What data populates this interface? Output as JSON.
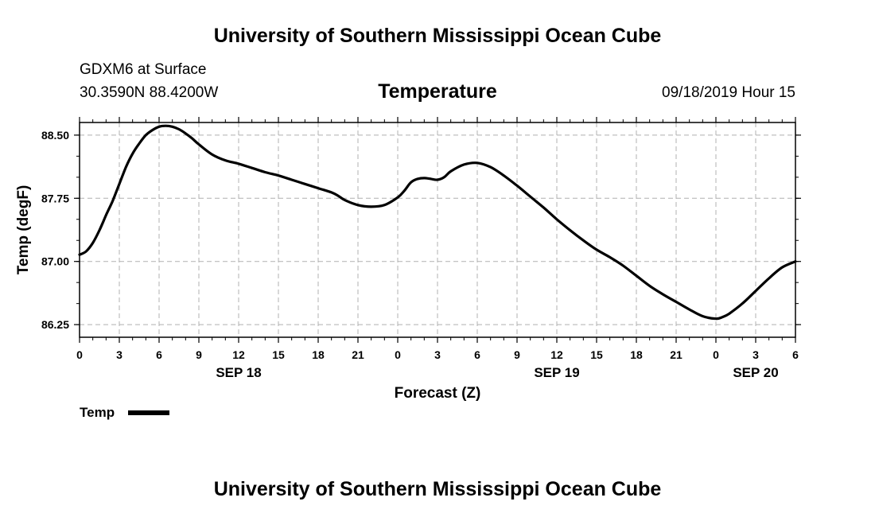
{
  "page": {
    "top_title": "University of Southern Mississippi Ocean Cube",
    "bottom_title": "University of Southern Mississippi Ocean Cube",
    "station": "GDXM6 at Surface",
    "location": "30.3590N 88.4200W",
    "datetime": "09/18/2019 Hour 15"
  },
  "chart_data": {
    "type": "line",
    "title": "Temperature",
    "xlabel": "Forecast (Z)",
    "ylabel": "Temp (degF)",
    "xlim": [
      0,
      54
    ],
    "ylim": [
      86.1,
      88.65
    ],
    "x_ticks": [
      0,
      3,
      6,
      9,
      12,
      15,
      18,
      21,
      24,
      27,
      30,
      33,
      36,
      39,
      42,
      45,
      48,
      51,
      54
    ],
    "x_tick_labels": [
      "0",
      "3",
      "6",
      "9",
      "12",
      "15",
      "18",
      "21",
      "0",
      "3",
      "6",
      "9",
      "12",
      "15",
      "18",
      "21",
      "0",
      "3",
      "6"
    ],
    "date_labels": [
      {
        "x": 12,
        "label": "SEP 18"
      },
      {
        "x": 36,
        "label": "SEP 19"
      },
      {
        "x": 51,
        "label": "SEP 20"
      }
    ],
    "y_ticks": [
      86.25,
      87.0,
      87.75,
      88.5
    ],
    "y_tick_labels": [
      "86.25",
      "87.00",
      "87.75",
      "88.50"
    ],
    "grid": true,
    "series": [
      {
        "name": "Temp",
        "color": "#000000",
        "x": [
          0,
          0.5,
          1,
          1.5,
          2,
          2.5,
          3,
          3.5,
          4,
          4.5,
          5,
          5.5,
          6,
          6.5,
          7,
          7.5,
          8,
          8.5,
          9,
          10,
          11,
          12,
          13,
          14,
          15,
          16,
          17,
          18,
          19,
          19.5,
          20,
          21,
          22,
          23,
          24,
          24.5,
          25,
          25.5,
          26,
          26.5,
          27,
          27.5,
          28,
          29,
          30,
          31,
          32,
          33,
          34,
          35,
          36,
          37,
          38,
          39,
          40,
          41,
          42,
          43,
          44,
          45,
          46,
          47,
          48,
          48.5,
          49,
          50,
          51,
          52,
          53,
          54
        ],
        "values": [
          87.08,
          87.12,
          87.22,
          87.37,
          87.55,
          87.72,
          87.92,
          88.12,
          88.28,
          88.4,
          88.5,
          88.56,
          88.6,
          88.61,
          88.6,
          88.57,
          88.52,
          88.46,
          88.39,
          88.27,
          88.2,
          88.16,
          88.11,
          88.06,
          88.02,
          87.97,
          87.92,
          87.87,
          87.82,
          87.78,
          87.73,
          87.67,
          87.65,
          87.67,
          87.76,
          87.84,
          87.94,
          87.98,
          87.99,
          87.98,
          87.97,
          88.0,
          88.07,
          88.15,
          88.17,
          88.12,
          88.02,
          87.9,
          87.77,
          87.64,
          87.5,
          87.37,
          87.25,
          87.14,
          87.05,
          86.95,
          86.83,
          86.71,
          86.61,
          86.52,
          86.43,
          86.35,
          86.32,
          86.34,
          86.38,
          86.5,
          86.65,
          86.8,
          86.93,
          87.0
        ]
      }
    ],
    "legend": [
      {
        "label": "Temp",
        "position": "bottom-left"
      }
    ]
  }
}
